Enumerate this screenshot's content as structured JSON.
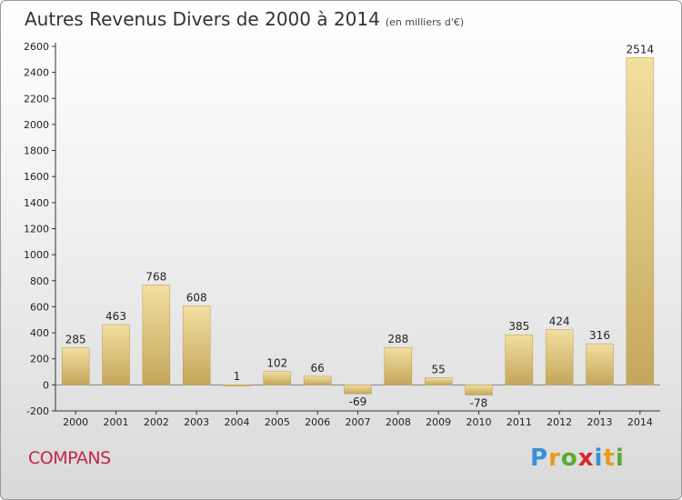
{
  "title": "Autres Revenus Divers de 2000 à 2014",
  "unit": "(en milliers d'€)",
  "commune": "COMPANS",
  "logo": "Proxiti",
  "colors": {
    "bar_light": "#f3dfa0",
    "bar_dark": "#c4a65b",
    "commune": "#c0274f"
  },
  "chart_data": {
    "type": "bar",
    "title": "Autres Revenus Divers de 2000 à 2014",
    "subtitle": "(en milliers d'€)",
    "categories": [
      "2000",
      "2001",
      "2002",
      "2003",
      "2004",
      "2005",
      "2006",
      "2007",
      "2008",
      "2009",
      "2010",
      "2011",
      "2012",
      "2013",
      "2014"
    ],
    "values": [
      285,
      463,
      768,
      608,
      1,
      102,
      66,
      -69,
      288,
      55,
      -78,
      385,
      424,
      316,
      2514
    ],
    "y_ticks": [
      -200,
      0,
      200,
      400,
      600,
      800,
      1000,
      1200,
      1400,
      1600,
      1800,
      2000,
      2200,
      2400,
      2600
    ],
    "ylim": [
      -200,
      2600
    ],
    "grid": false,
    "legend": "none"
  }
}
